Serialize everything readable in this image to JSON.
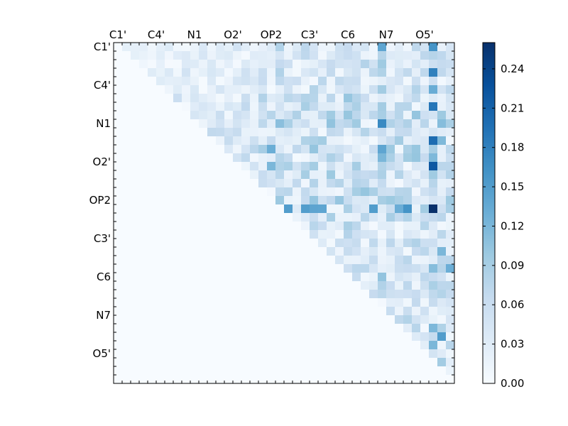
{
  "chart_data": {
    "type": "heatmap",
    "title": "",
    "xlabel": "",
    "ylabel": "",
    "n": 40,
    "tick_labels": [
      "C1'",
      "C4'",
      "N1",
      "O2'",
      "OP2",
      "C3'",
      "C6",
      "N7",
      "O5'"
    ],
    "tick_every": 4.5,
    "colormap": "Blues",
    "colorbar": {
      "vmin": 0.0,
      "vmax": 0.26,
      "ticks": [
        0.0,
        0.03,
        0.06,
        0.09,
        0.12,
        0.15,
        0.18,
        0.21,
        0.24
      ],
      "tick_labels": [
        "0.00",
        "0.03",
        "0.06",
        "0.09",
        "0.12",
        "0.15",
        "0.18",
        "0.21",
        "0.24"
      ]
    },
    "upper_triangle_only": true,
    "row_profile": [
      0.02,
      0.02,
      0.02,
      0.03,
      0.02,
      0.03,
      0.04,
      0.04,
      0.04,
      0.05,
      0.05,
      0.06,
      0.05,
      0.04,
      0.04,
      0.04,
      0.03,
      0.04,
      0.05,
      0.09,
      0.04,
      0.03,
      0.02,
      0.02,
      0.02,
      0.03,
      0.03,
      0.02,
      0.02,
      0.03,
      0.02,
      0.02,
      0.03,
      0.02,
      0.03,
      0.03,
      0.04,
      0.05,
      0.02,
      0.01
    ],
    "col_profile": [
      0.0,
      0.01,
      0.01,
      0.01,
      0.01,
      0.01,
      0.02,
      0.02,
      0.02,
      0.02,
      0.02,
      0.02,
      0.02,
      0.03,
      0.03,
      0.03,
      0.03,
      0.04,
      0.04,
      0.06,
      0.05,
      0.04,
      0.06,
      0.05,
      0.05,
      0.06,
      0.05,
      0.06,
      0.05,
      0.06,
      0.05,
      0.08,
      0.05,
      0.04,
      0.05,
      0.06,
      0.05,
      0.1,
      0.06,
      0.05
    ],
    "hotspots": [
      {
        "row": 19,
        "col": 37,
        "value": 0.26
      },
      {
        "row": 14,
        "col": 37,
        "value": 0.22
      },
      {
        "row": 9,
        "col": 31,
        "value": 0.17
      },
      {
        "row": 19,
        "col": 34,
        "value": 0.16
      },
      {
        "row": 19,
        "col": 20,
        "value": 0.15
      },
      {
        "row": 19,
        "col": 22,
        "value": 0.15
      },
      {
        "row": 19,
        "col": 24,
        "value": 0.14
      },
      {
        "row": 19,
        "col": 30,
        "value": 0.15
      },
      {
        "row": 12,
        "col": 18,
        "value": 0.13
      },
      {
        "row": 14,
        "col": 18,
        "value": 0.12
      },
      {
        "row": 12,
        "col": 31,
        "value": 0.14
      },
      {
        "row": 0,
        "col": 31,
        "value": 0.14
      },
      {
        "row": 0,
        "col": 37,
        "value": 0.16
      },
      {
        "row": 3,
        "col": 37,
        "value": 0.18
      },
      {
        "row": 7,
        "col": 37,
        "value": 0.19
      },
      {
        "row": 11,
        "col": 37,
        "value": 0.2
      },
      {
        "row": 13,
        "col": 31,
        "value": 0.12
      },
      {
        "row": 26,
        "col": 39,
        "value": 0.13
      },
      {
        "row": 24,
        "col": 38,
        "value": 0.12
      },
      {
        "row": 34,
        "col": 38,
        "value": 0.15
      },
      {
        "row": 35,
        "col": 37,
        "value": 0.12
      }
    ]
  }
}
